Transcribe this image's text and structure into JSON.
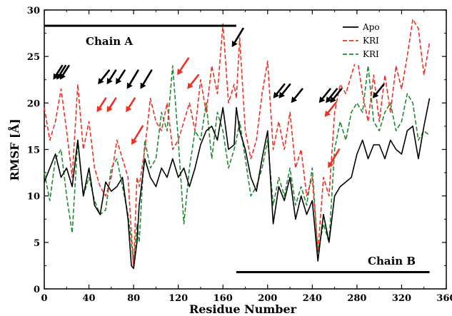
{
  "chart_data": {
    "type": "line",
    "xlabel": "Residue Number",
    "ylabel": "RMSF [Å]",
    "xlim": [
      0,
      360
    ],
    "ylim": [
      0,
      30
    ],
    "xticks": [
      "0",
      "40",
      "80",
      "120",
      "160",
      "200",
      "240",
      "280",
      "320",
      "360"
    ],
    "yticks": [
      "0",
      "5",
      "10",
      "15",
      "20",
      "25",
      "30"
    ],
    "legend_position": "top-right",
    "colors": {
      "apo": "#000000",
      "kri1": "#ee3124",
      "kri2": "#1f8a2e",
      "arrow_black": "#000000",
      "arrow_red": "#ee3124"
    },
    "series": [
      {
        "name": "Apo",
        "style": "solid",
        "x": [
          0,
          5,
          10,
          15,
          20,
          25,
          30,
          35,
          40,
          45,
          50,
          55,
          60,
          65,
          70,
          75,
          78,
          80,
          83,
          85,
          90,
          95,
          100,
          105,
          110,
          115,
          120,
          125,
          130,
          135,
          140,
          145,
          150,
          155,
          160,
          165,
          170,
          172,
          175,
          180,
          185,
          190,
          195,
          200,
          205,
          210,
          215,
          220,
          225,
          230,
          235,
          240,
          245,
          250,
          255,
          260,
          265,
          270,
          275,
          280,
          285,
          290,
          295,
          300,
          305,
          310,
          315,
          320,
          325,
          330,
          335,
          340,
          345
        ],
        "values": [
          11.5,
          13,
          14.5,
          12,
          13,
          11,
          16,
          10,
          13,
          9,
          8,
          11.5,
          10.5,
          11,
          12,
          7.5,
          2.5,
          2.2,
          5,
          9,
          14,
          12,
          11,
          13,
          12,
          14,
          12,
          13,
          11,
          13,
          15.5,
          17,
          17.5,
          16,
          19.5,
          15,
          15.5,
          19.5,
          17,
          15,
          12,
          10.5,
          14,
          17,
          7,
          11,
          9.5,
          12,
          7.5,
          10,
          8,
          9.5,
          3,
          8,
          5,
          10,
          11,
          11.5,
          12,
          14.5,
          16,
          14,
          15.5,
          15.5,
          14,
          16,
          15,
          14.5,
          17,
          17.5,
          14,
          17.5,
          20.5
        ]
      },
      {
        "name": "KRI",
        "style": "dashed",
        "x": [
          0,
          5,
          10,
          15,
          20,
          25,
          30,
          35,
          40,
          45,
          50,
          55,
          60,
          65,
          70,
          75,
          78,
          80,
          83,
          85,
          90,
          95,
          100,
          105,
          110,
          115,
          120,
          125,
          130,
          135,
          140,
          145,
          150,
          155,
          160,
          165,
          170,
          172,
          175,
          180,
          185,
          190,
          195,
          200,
          205,
          210,
          215,
          220,
          225,
          230,
          235,
          240,
          245,
          250,
          255,
          260,
          265,
          270,
          275,
          280,
          285,
          290,
          295,
          300,
          305,
          310,
          315,
          320,
          325,
          330,
          335,
          340,
          345
        ],
        "values": [
          19.5,
          16,
          18,
          21.5,
          17,
          12,
          22,
          15,
          18,
          13,
          11,
          10,
          12,
          16,
          14,
          12,
          6,
          2.5,
          12,
          11,
          15,
          20.5,
          18,
          17,
          20,
          15,
          16,
          18,
          20,
          17,
          22.5,
          19,
          24,
          21,
          28.5,
          20,
          22,
          20.5,
          27,
          17,
          14,
          16,
          21,
          24.5,
          15,
          18,
          15,
          19,
          13,
          15,
          10,
          12,
          4,
          12,
          10,
          19,
          22,
          21,
          23,
          25,
          21,
          18,
          23,
          18,
          23,
          19,
          24,
          21.5,
          25,
          29,
          28,
          23,
          26.5
        ]
      },
      {
        "name": "KRI",
        "style": "dashed",
        "x": [
          0,
          5,
          10,
          15,
          20,
          25,
          30,
          35,
          40,
          45,
          50,
          55,
          60,
          65,
          70,
          75,
          78,
          80,
          83,
          85,
          90,
          95,
          100,
          105,
          110,
          115,
          120,
          125,
          130,
          135,
          140,
          145,
          150,
          155,
          160,
          165,
          170,
          172,
          175,
          180,
          185,
          190,
          195,
          200,
          205,
          210,
          215,
          220,
          225,
          230,
          235,
          240,
          245,
          250,
          255,
          260,
          265,
          270,
          275,
          280,
          285,
          290,
          295,
          300,
          305,
          310,
          315,
          320,
          325,
          330,
          335,
          340,
          345
        ],
        "values": [
          12.5,
          9.5,
          14,
          15,
          10,
          6,
          16,
          10,
          12,
          9.5,
          8,
          8.5,
          13,
          14,
          11,
          8,
          5,
          2.5,
          7,
          5,
          16,
          13,
          14,
          19,
          17,
          24,
          16,
          7,
          13,
          17,
          16,
          20,
          14,
          19,
          17,
          13,
          15,
          16,
          18,
          14,
          10,
          11,
          13,
          16,
          9,
          12,
          10,
          13,
          9,
          11,
          9,
          13,
          4,
          7,
          5,
          15,
          18,
          16,
          19,
          20,
          19,
          24,
          18,
          17,
          19,
          20,
          17,
          18,
          21,
          20,
          16,
          17,
          16.5
        ]
      }
    ],
    "annotations": [
      {
        "text": "Chain A",
        "x": 20,
        "y": 26.5
      },
      {
        "text": "Chain B",
        "x": 312,
        "y": 3
      }
    ],
    "chain_bars": [
      {
        "x": [
          0,
          172
        ],
        "y": 28.3
      },
      {
        "x": [
          172,
          345
        ],
        "y": 1.8
      }
    ],
    "arrows": [
      {
        "color": "black",
        "tip": [
          8,
          22.5
        ],
        "tail": [
          16,
          24
        ]
      },
      {
        "color": "black",
        "tip": [
          11,
          22.5
        ],
        "tail": [
          19,
          24
        ]
      },
      {
        "color": "black",
        "tip": [
          14,
          22.5
        ],
        "tail": [
          22,
          24
        ]
      },
      {
        "color": "black",
        "tip": [
          48,
          22
        ],
        "tail": [
          58,
          23.5
        ]
      },
      {
        "color": "black",
        "tip": [
          56,
          22
        ],
        "tail": [
          64,
          23.5
        ]
      },
      {
        "color": "black",
        "tip": [
          64,
          22
        ],
        "tail": [
          72,
          23.5
        ]
      },
      {
        "color": "black",
        "tip": [
          74,
          21.5
        ],
        "tail": [
          84,
          23.5
        ]
      },
      {
        "color": "black",
        "tip": [
          86,
          21.5
        ],
        "tail": [
          96,
          23.5
        ]
      },
      {
        "color": "black",
        "tip": [
          168,
          26
        ],
        "tail": [
          178,
          28
        ]
      },
      {
        "color": "black",
        "tip": [
          205,
          20.5
        ],
        "tail": [
          215,
          22
        ]
      },
      {
        "color": "black",
        "tip": [
          210,
          20.5
        ],
        "tail": [
          220,
          22
        ]
      },
      {
        "color": "black",
        "tip": [
          221,
          20
        ],
        "tail": [
          231,
          21.5
        ]
      },
      {
        "color": "black",
        "tip": [
          246,
          20
        ],
        "tail": [
          256,
          21.5
        ]
      },
      {
        "color": "black",
        "tip": [
          252,
          20
        ],
        "tail": [
          262,
          21.5
        ]
      },
      {
        "color": "black",
        "tip": [
          256,
          20
        ],
        "tail": [
          266,
          21.5
        ]
      },
      {
        "color": "black",
        "tip": [
          294,
          20.5
        ],
        "tail": [
          304,
          22
        ]
      },
      {
        "color": "red",
        "tip": [
          47,
          19
        ],
        "tail": [
          55,
          20.5
        ]
      },
      {
        "color": "red",
        "tip": [
          56,
          19
        ],
        "tail": [
          64,
          20.5
        ]
      },
      {
        "color": "red",
        "tip": [
          73,
          19
        ],
        "tail": [
          81,
          20.5
        ]
      },
      {
        "color": "red",
        "tip": [
          78,
          15.5
        ],
        "tail": [
          88,
          17.5
        ]
      },
      {
        "color": "red",
        "tip": [
          119,
          23
        ],
        "tail": [
          129,
          24.8
        ]
      },
      {
        "color": "red",
        "tip": [
          128,
          21.5
        ],
        "tail": [
          138,
          23
        ]
      },
      {
        "color": "red",
        "tip": [
          251,
          18.5
        ],
        "tail": [
          261,
          20
        ]
      },
      {
        "color": "red",
        "tip": [
          254,
          13
        ],
        "tail": [
          264,
          15
        ]
      }
    ]
  }
}
